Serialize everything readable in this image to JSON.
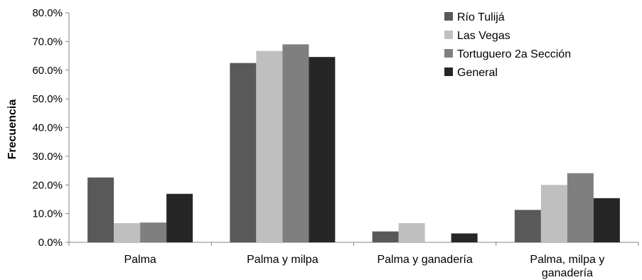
{
  "chart_data": {
    "type": "bar",
    "title": "",
    "xlabel": "",
    "ylabel": "Frecuencia",
    "ylim": [
      0,
      80
    ],
    "yticks": [
      "0.0%",
      "10.0%",
      "20.0%",
      "30.0%",
      "40.0%",
      "50.0%",
      "60.0%",
      "70.0%",
      "80.0%"
    ],
    "grid": false,
    "legend_position": "top-right",
    "categories": [
      [
        "Palma"
      ],
      [
        "Palma y milpa"
      ],
      [
        "Palma y ganadería"
      ],
      [
        "Palma, milpa y",
        "ganadería"
      ]
    ],
    "series": [
      {
        "name": "Río Tulijá",
        "color": "#595959",
        "values": [
          22.6,
          62.5,
          3.8,
          11.3
        ]
      },
      {
        "name": "Las Vegas",
        "color": "#bfbfbf",
        "values": [
          6.7,
          66.7,
          6.7,
          20.0
        ]
      },
      {
        "name": "Tortuguero 2a Sección",
        "color": "#7f7f7f",
        "values": [
          6.9,
          69.0,
          0.0,
          24.1
        ]
      },
      {
        "name": "General",
        "color": "#262626",
        "values": [
          16.9,
          64.6,
          3.1,
          15.4
        ]
      }
    ]
  }
}
